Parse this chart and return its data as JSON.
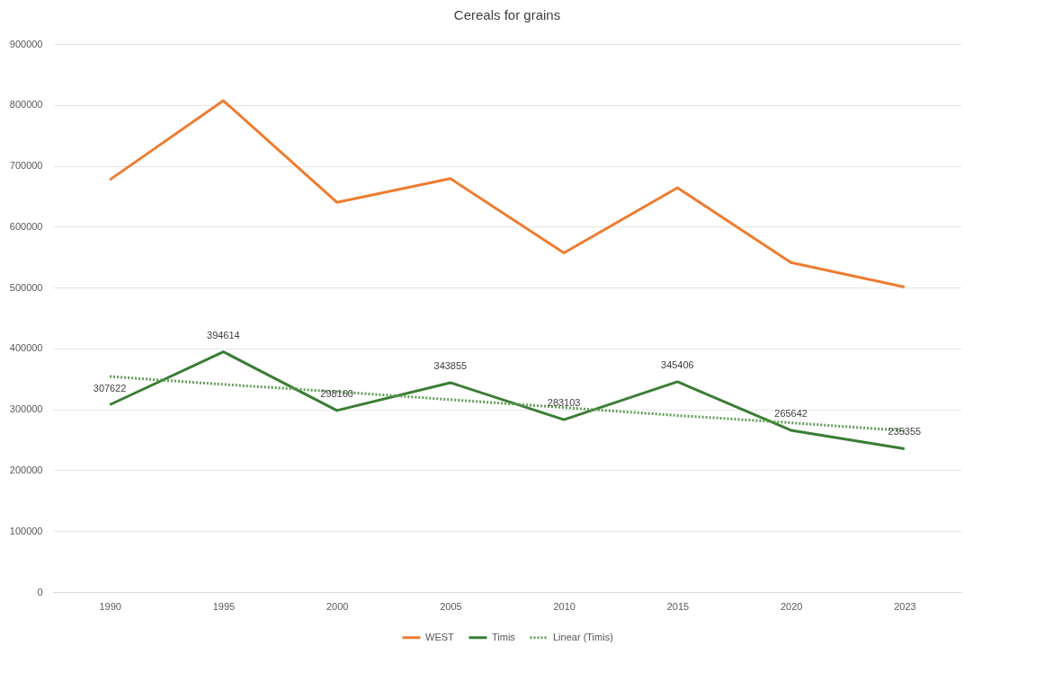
{
  "chart_data": {
    "type": "line",
    "title": "Cereals for grains",
    "categories": [
      "1990",
      "1995",
      "2000",
      "2005",
      "2010",
      "2015",
      "2020",
      "2023"
    ],
    "series": [
      {
        "name": "WEST",
        "color": "#ed7d31",
        "values": [
          677000,
          807000,
          640000,
          679000,
          557000,
          664000,
          541000,
          501000
        ]
      },
      {
        "name": "Timis",
        "color": "#3a7d34",
        "values": [
          307622,
          394614,
          298160,
          343855,
          283103,
          345406,
          265642,
          235355
        ],
        "data_labels": true
      },
      {
        "name": "Linear (Timis)",
        "color": "#5f9e55",
        "line_style": "dotted",
        "values": [
          354000,
          341000,
          329000,
          316000,
          303000,
          290000,
          278000,
          265000
        ]
      }
    ],
    "ylim": [
      0,
      900000
    ],
    "yticks": [
      0,
      100000,
      200000,
      300000,
      400000,
      500000,
      600000,
      700000,
      800000,
      900000
    ],
    "grid": "y",
    "legend": "bottom"
  }
}
